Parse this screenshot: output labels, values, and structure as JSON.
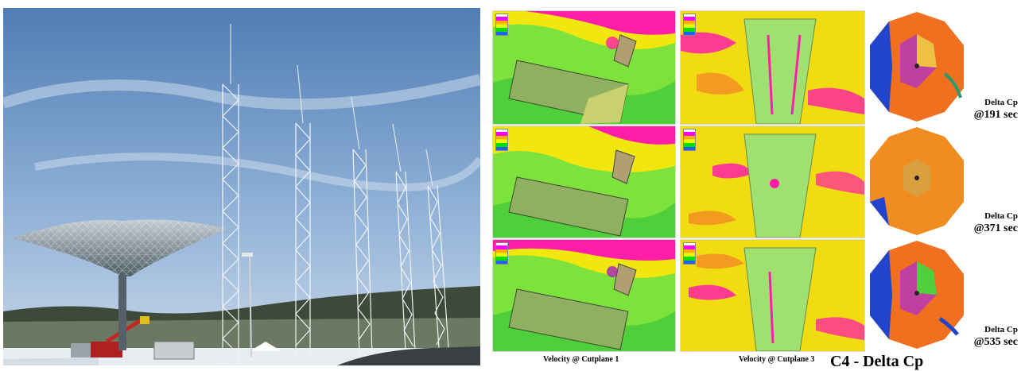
{
  "captions": {
    "velocity_1": "Velocity @ Cutplane 1",
    "velocity_3": "Velocity @ Cutplane 3",
    "delta_label": "Delta Cp",
    "delta_times": [
      "@191 sec",
      "@371 sec",
      "@535 sec"
    ],
    "figure_title": "C4 - Delta Cp"
  },
  "colors": {
    "sky": "#6f95c4",
    "magenta": "#ff1ea8",
    "yellow": "#f3e80f",
    "green": "#5fe03a",
    "orange": "#f0a020",
    "blue": "#2244cc"
  }
}
